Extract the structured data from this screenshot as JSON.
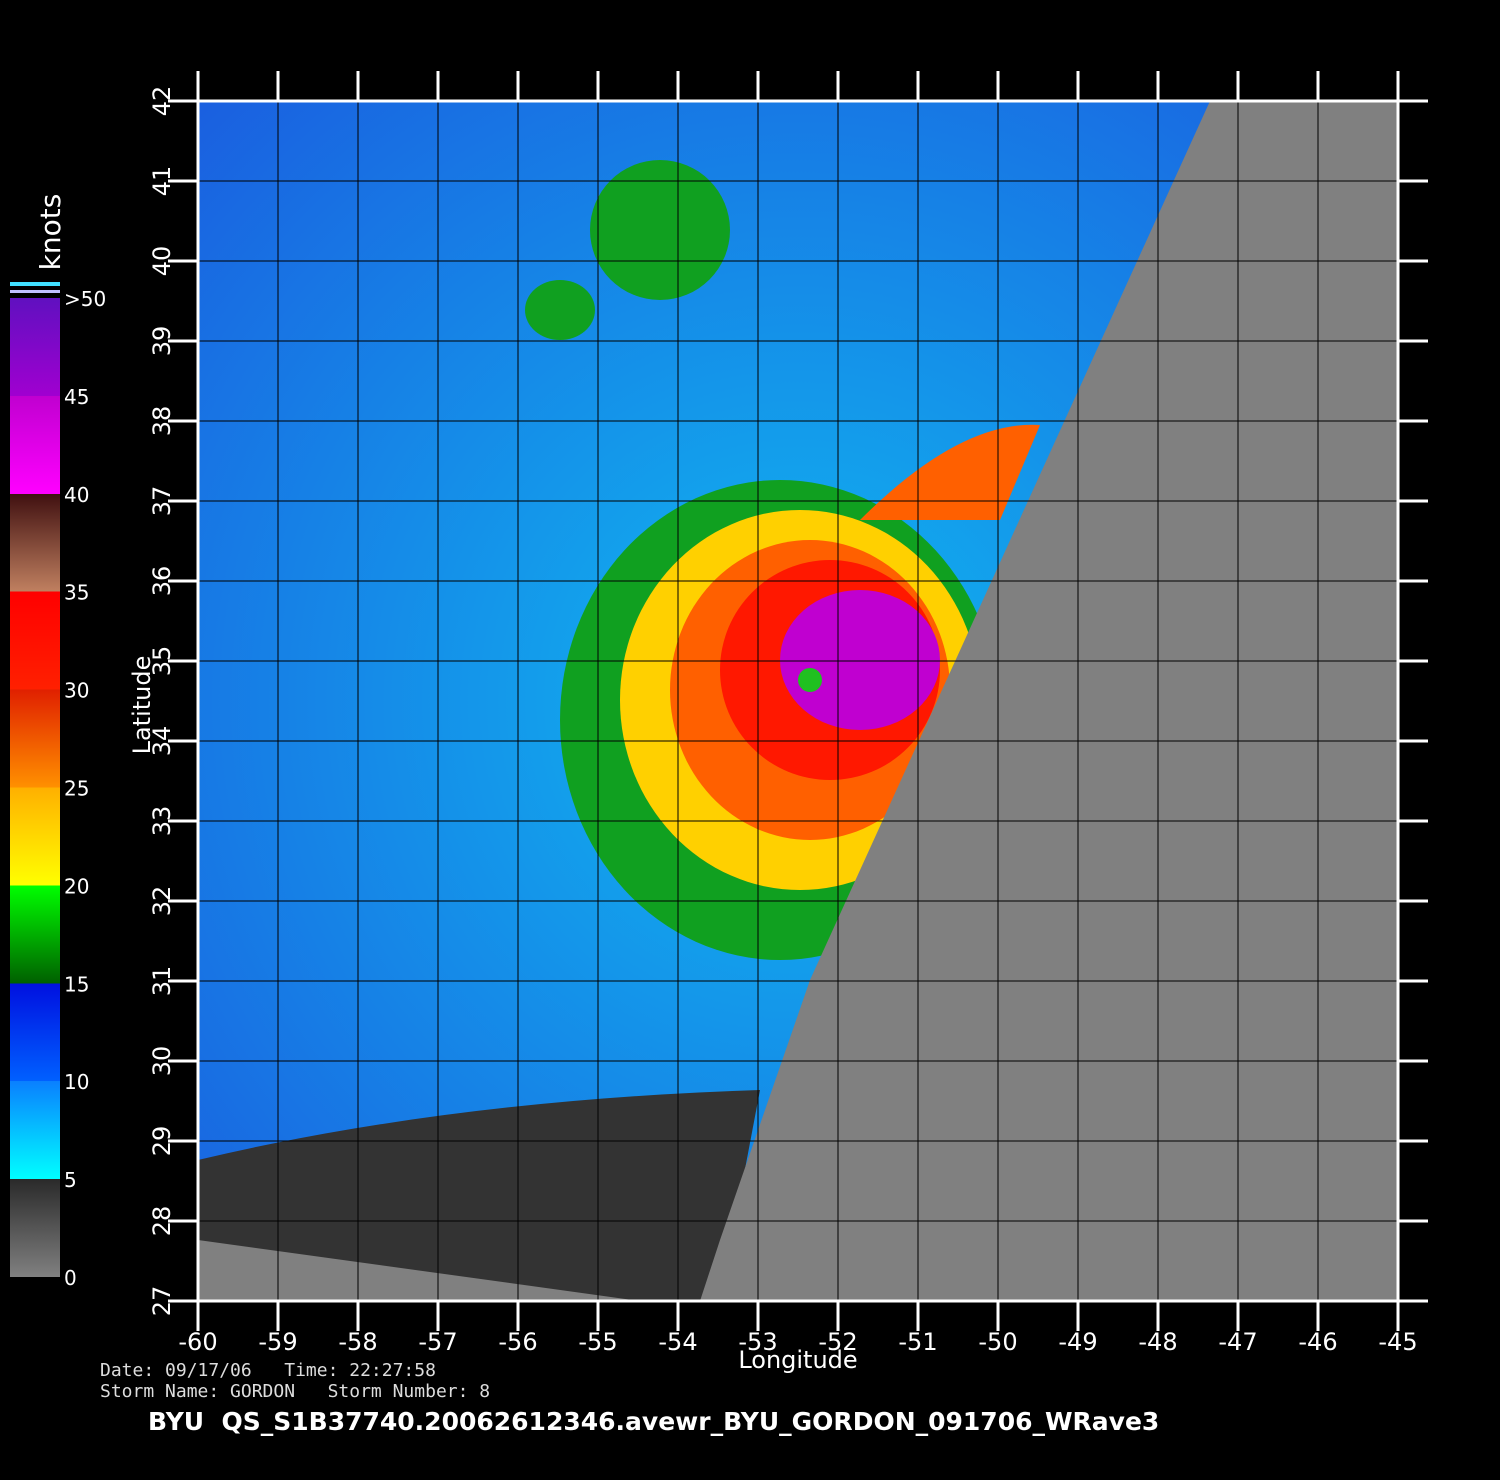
{
  "map": {
    "x_label": "Longitude",
    "y_label": "Latitude",
    "xlim": [
      -60,
      -45
    ],
    "ylim": [
      27,
      42
    ],
    "xticks": [
      -60,
      -59,
      -58,
      -57,
      -56,
      -55,
      -54,
      -53,
      -52,
      -51,
      -50,
      -49,
      -48,
      -47,
      -46,
      -45
    ],
    "yticks": [
      27,
      28,
      29,
      30,
      31,
      32,
      33,
      34,
      35,
      36,
      37,
      38,
      39,
      40,
      41,
      42
    ],
    "colorbar": {
      "title": "knots",
      "lim": [
        0,
        50
      ],
      "ticks": [
        0,
        5,
        10,
        15,
        20,
        25,
        30,
        35,
        40,
        45,
        {
          "value": 50,
          "label": ">50"
        }
      ]
    },
    "footer": {
      "line1": "Date: 09/17/06   Time: 22:27:58",
      "line2": "Storm Name: GORDON   Storm Number: 8",
      "file": "BYU  QS_S1B37740.20062612346.avewr_BYU_GORDON_091706_WRave3"
    }
  }
}
